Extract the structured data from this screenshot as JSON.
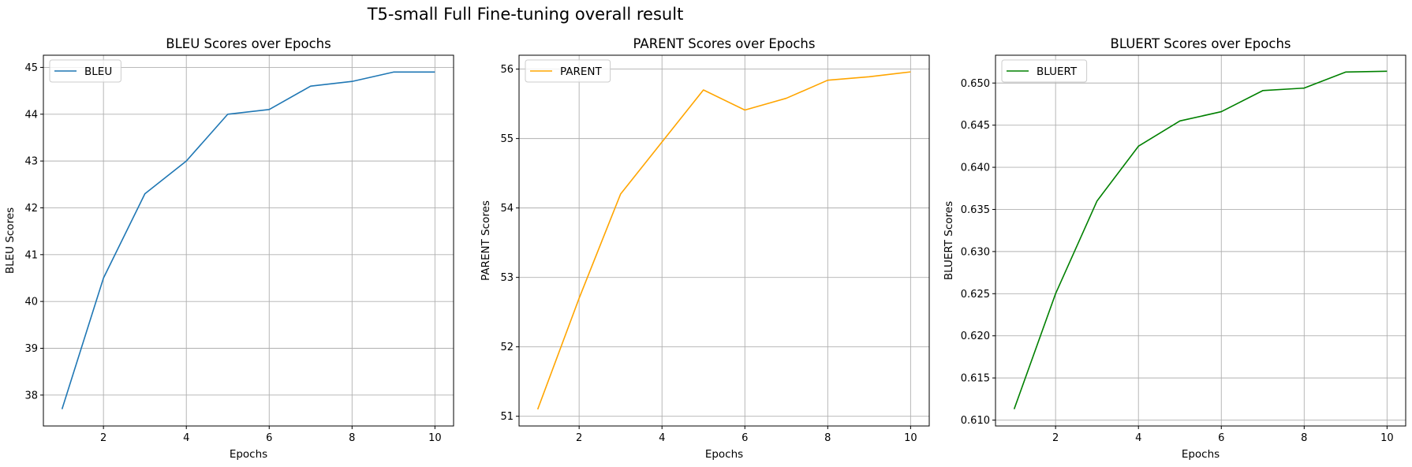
{
  "suptitle": "T5-small Full Fine-tuning overall result",
  "chart_data": [
    {
      "type": "line",
      "title": "BLEU Scores over Epochs",
      "xlabel": "Epochs",
      "ylabel": "BLEU Scores",
      "x": [
        1,
        2,
        3,
        4,
        5,
        6,
        7,
        8,
        9,
        10
      ],
      "series": [
        {
          "name": "BLEU",
          "color": "#1f77b4",
          "values": [
            37.7,
            40.5,
            42.3,
            43.0,
            44.0,
            44.1,
            44.6,
            44.7,
            44.9,
            44.9
          ]
        }
      ],
      "xlim": [
        0.55,
        10.45
      ],
      "ylim": [
        37.34,
        45.26
      ],
      "xticks": [
        2,
        4,
        6,
        8,
        10
      ],
      "yticks": [
        38,
        39,
        40,
        41,
        42,
        43,
        44,
        45
      ],
      "ytick_labels": [
        "38",
        "39",
        "40",
        "41",
        "42",
        "43",
        "44",
        "45"
      ],
      "grid": true,
      "legend": "upper left"
    },
    {
      "type": "line",
      "title": "PARENT Scores over Epochs",
      "xlabel": "Epochs",
      "ylabel": "PARENT Scores",
      "x": [
        1,
        2,
        3,
        4,
        5,
        6,
        7,
        8,
        9,
        10
      ],
      "series": [
        {
          "name": "PARENT",
          "color": "#ffa500",
          "values": [
            51.1,
            52.7,
            54.2,
            54.95,
            55.7,
            55.41,
            55.58,
            55.84,
            55.89,
            55.96
          ]
        }
      ],
      "xlim": [
        0.55,
        10.45
      ],
      "ylim": [
        50.86,
        56.2
      ],
      "xticks": [
        2,
        4,
        6,
        8,
        10
      ],
      "yticks": [
        51,
        52,
        53,
        54,
        55,
        56
      ],
      "ytick_labels": [
        "51",
        "52",
        "53",
        "54",
        "55",
        "56"
      ],
      "grid": true,
      "legend": "upper left"
    },
    {
      "type": "line",
      "title": "BLUERT Scores over Epochs",
      "xlabel": "Epochs",
      "ylabel": "BLUERT Scores",
      "x": [
        1,
        2,
        3,
        4,
        5,
        6,
        7,
        8,
        9,
        10
      ],
      "series": [
        {
          "name": "BLUERT",
          "color": "#008000",
          "values": [
            0.6113,
            0.625,
            0.636,
            0.6425,
            0.6455,
            0.6466,
            0.6491,
            0.6494,
            0.6513,
            0.6514
          ]
        }
      ],
      "xlim": [
        0.55,
        10.45
      ],
      "ylim": [
        0.6093,
        0.6533
      ],
      "xticks": [
        2,
        4,
        6,
        8,
        10
      ],
      "yticks": [
        0.61,
        0.615,
        0.62,
        0.625,
        0.63,
        0.635,
        0.64,
        0.645,
        0.65
      ],
      "ytick_labels": [
        "0.610",
        "0.615",
        "0.620",
        "0.625",
        "0.630",
        "0.635",
        "0.640",
        "0.645",
        "0.650"
      ],
      "grid": true,
      "legend": "upper left"
    }
  ]
}
